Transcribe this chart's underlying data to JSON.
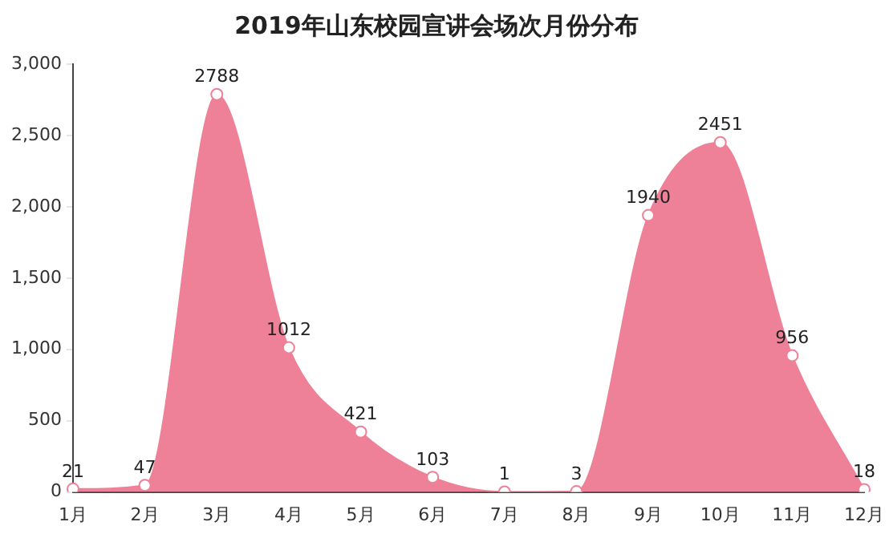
{
  "chart_data": {
    "type": "area",
    "title": "2019年山东校园宣讲会场次月份分布",
    "categories": [
      "1月",
      "2月",
      "3月",
      "4月",
      "5月",
      "6月",
      "7月",
      "8月",
      "9月",
      "10月",
      "11月",
      "12月"
    ],
    "series": [
      {
        "color": "#ee8197",
        "values": [
          21,
          47,
          2788,
          1012,
          421,
          103,
          1,
          3,
          1940,
          2451,
          956,
          18
        ]
      }
    ],
    "ylim": [
      0,
      3000
    ],
    "yticks": [
      0,
      500,
      {
        "value": 1000,
        "label": "1,000"
      },
      {
        "value": 1500,
        "label": "1,500"
      },
      {
        "value": 2000,
        "label": "2,000"
      },
      {
        "value": 2500,
        "label": "2,500"
      },
      {
        "value": 3000,
        "label": "3,000"
      }
    ],
    "grid": false,
    "legend": false,
    "marker": "circle",
    "data_labels": true
  }
}
